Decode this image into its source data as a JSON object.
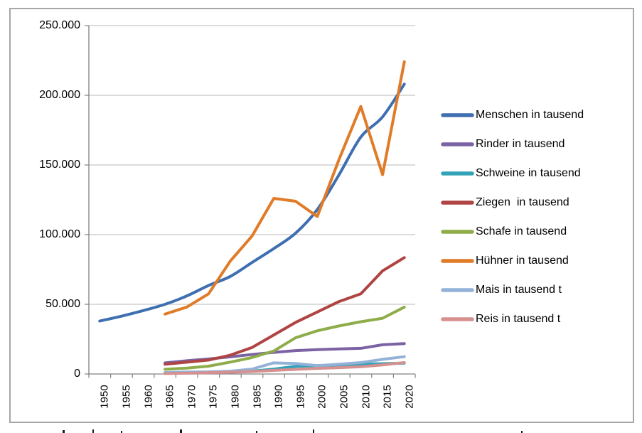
{
  "frame": {
    "border_color": "#A6A6A6",
    "background": "#FFFFFF"
  },
  "axes": {
    "grid_color": "#C6C6C6",
    "axis_color": "#808080",
    "label_color": "#000000"
  },
  "chart_data": {
    "type": "line",
    "title": "",
    "xlabel": "",
    "ylabel": "",
    "grid": true,
    "legend_position": "right",
    "ylim": [
      0,
      250000
    ],
    "y_ticks": [
      {
        "label": "250.000",
        "value": 250000
      },
      {
        "label": "200.000",
        "value": 200000
      },
      {
        "label": "150.000",
        "value": 150000
      },
      {
        "label": "100.000",
        "value": 100000
      },
      {
        "label": "50.000",
        "value": 50000
      },
      {
        "label": "0",
        "value": 0
      }
    ],
    "x_categories": [
      "1950",
      "1955",
      "1960",
      "1965",
      "1970",
      "1975",
      "1980",
      "1985",
      "1990",
      "1995",
      "2000",
      "2005",
      "2010",
      "2015",
      "2020"
    ],
    "series": [
      {
        "name": "Menschen in tausend",
        "color": "#3E6FB0",
        "smooth": true,
        "start_year": "1950",
        "values": [
          38000,
          41500,
          45500,
          50000,
          56000,
          63500,
          70000,
          80000,
          90000,
          101000,
          118000,
          143000,
          170000,
          184500,
          208000
        ]
      },
      {
        "name": "Rinder in tausend",
        "color": "#7B62A3",
        "smooth": false,
        "start_year": "1965",
        "values": [
          8000,
          9500,
          10800,
          12300,
          14000,
          15500,
          16800,
          17500,
          18000,
          18400,
          21000,
          21800
        ]
      },
      {
        "name": "Schweine in tausend",
        "color": "#31A2B8",
        "smooth": false,
        "start_year": "1965",
        "values": [
          500,
          800,
          1000,
          1300,
          2000,
          3500,
          5500,
          6000,
          6500,
          7000,
          7400,
          7800
        ]
      },
      {
        "name": "Ziegen  in tausend",
        "color": "#AF4442",
        "smooth": false,
        "start_year": "1965",
        "values": [
          7000,
          8500,
          10000,
          13500,
          19000,
          28000,
          37000,
          44500,
          52000,
          57500,
          74000,
          83500
        ]
      },
      {
        "name": "Schafe in tausend",
        "color": "#8EAD4A",
        "smooth": false,
        "start_year": "1965",
        "values": [
          3400,
          4200,
          5600,
          8500,
          11800,
          16500,
          26000,
          31000,
          34500,
          37500,
          40000,
          48000
        ]
      },
      {
        "name": "Hühner in tausend",
        "color": "#E07B28",
        "smooth": false,
        "start_year": "1965",
        "values": [
          43000,
          48000,
          57500,
          81000,
          99000,
          126000,
          124000,
          113000,
          154000,
          192000,
          143000,
          224000
        ]
      },
      {
        "name": "Mais in tausend t",
        "color": "#94B2D7",
        "smooth": false,
        "start_year": "1965",
        "values": [
          1000,
          1400,
          1500,
          2000,
          3500,
          8000,
          7500,
          6000,
          7000,
          8200,
          10500,
          12400
        ]
      },
      {
        "name": "Reis in tausend t",
        "color": "#D5908F",
        "smooth": false,
        "start_year": "1965",
        "values": [
          300,
          600,
          900,
          1300,
          1800,
          2600,
          3300,
          4000,
          4500,
          5200,
          6500,
          8200
        ]
      }
    ]
  }
}
